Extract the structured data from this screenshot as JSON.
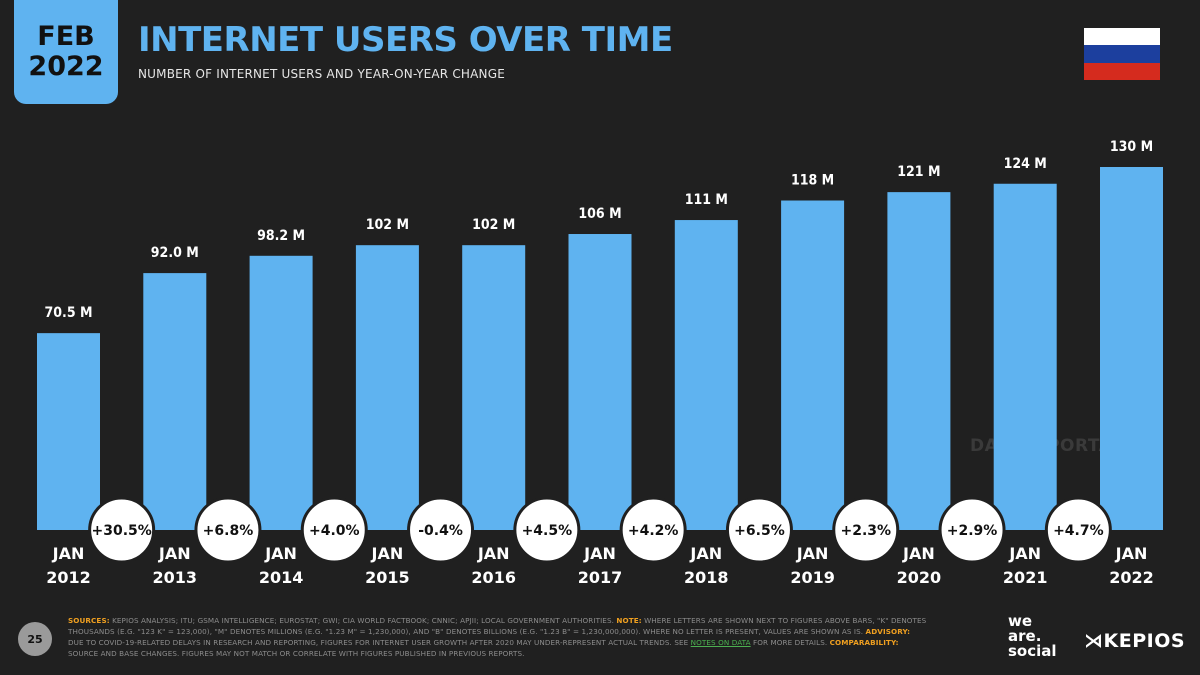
{
  "header": {
    "date_month": "FEB",
    "date_year": "2022",
    "title": "INTERNET USERS OVER TIME",
    "subtitle": "NUMBER OF INTERNET USERS AND YEAR-ON-YEAR CHANGE"
  },
  "flag": {
    "colors": [
      "#ffffff",
      "#1c3f9e",
      "#d52b1e"
    ]
  },
  "colors": {
    "bar": "#5fb3f0",
    "background": "#202020",
    "accent": "#5fb3f0",
    "highlight": "#f0a020"
  },
  "watermark": "DATAREPORTAL",
  "page_number": "25",
  "footer": {
    "sources_label": "SOURCES:",
    "sources_text": "KEPIOS ANALYSIS; ITU; GSMA INTELLIGENCE; EUROSTAT; GWI; CIA WORLD FACTBOOK; CNNIC; APJII; LOCAL GOVERNMENT AUTHORITIES.",
    "note_label": "NOTE:",
    "note_text": "WHERE LETTERS ARE SHOWN NEXT TO FIGURES ABOVE BARS, \"K\" DENOTES THOUSANDS (E.G. \"123 K\" = 123,000), \"M\" DENOTES MILLIONS (E.G. \"1.23 M\" = 1,230,000), AND \"B\" DENOTES BILLIONS (E.G. \"1.23 B\" = 1,230,000,000). WHERE NO LETTER IS PRESENT, VALUES ARE SHOWN AS IS.",
    "advisory_label": "ADVISORY:",
    "advisory_text": "DUE TO COVID-19-RELATED DELAYS IN RESEARCH AND REPORTING, FIGURES FOR INTERNET USER GROWTH AFTER 2020 MAY UNDER-REPRESENT ACTUAL TRENDS. SEE",
    "notes_link": "NOTES ON DATA",
    "notes_after": "FOR MORE DETAILS.",
    "comparability_label": "COMPARABILITY:",
    "comparability_text": "SOURCE AND BASE CHANGES. FIGURES MAY NOT MATCH OR CORRELATE WITH FIGURES PUBLISHED IN PREVIOUS REPORTS."
  },
  "logos": {
    "was_line1": "we",
    "was_line2": "are.",
    "was_line3": "social",
    "kepios": "KEPIOS"
  },
  "chart_data": {
    "type": "bar",
    "title": "INTERNET USERS OVER TIME",
    "subtitle": "NUMBER OF INTERNET USERS AND YEAR-ON-YEAR CHANGE",
    "categories": [
      "JAN 2012",
      "JAN 2013",
      "JAN 2014",
      "JAN 2015",
      "JAN 2016",
      "JAN 2017",
      "JAN 2018",
      "JAN 2019",
      "JAN 2020",
      "JAN 2021",
      "JAN 2022"
    ],
    "category_lines": [
      [
        "JAN",
        "2012"
      ],
      [
        "JAN",
        "2013"
      ],
      [
        "JAN",
        "2014"
      ],
      [
        "JAN",
        "2015"
      ],
      [
        "JAN",
        "2016"
      ],
      [
        "JAN",
        "2017"
      ],
      [
        "JAN",
        "2018"
      ],
      [
        "JAN",
        "2019"
      ],
      [
        "JAN",
        "2020"
      ],
      [
        "JAN",
        "2021"
      ],
      [
        "JAN",
        "2022"
      ]
    ],
    "values": [
      70.5,
      92.0,
      98.2,
      102,
      102,
      106,
      111,
      118,
      121,
      124,
      130
    ],
    "value_labels": [
      "70.5 M",
      "92.0 M",
      "98.2 M",
      "102 M",
      "102 M",
      "106 M",
      "111 M",
      "118 M",
      "121 M",
      "124 M",
      "130 M"
    ],
    "yoy_changes": [
      "+30.5%",
      "+6.8%",
      "+4.0%",
      "-0.4%",
      "+4.5%",
      "+4.2%",
      "+6.5%",
      "+2.3%",
      "+2.9%",
      "+4.7%"
    ],
    "unit": "M",
    "ylim": [
      0,
      130
    ],
    "grid": false,
    "xlabel": "",
    "ylabel": ""
  }
}
